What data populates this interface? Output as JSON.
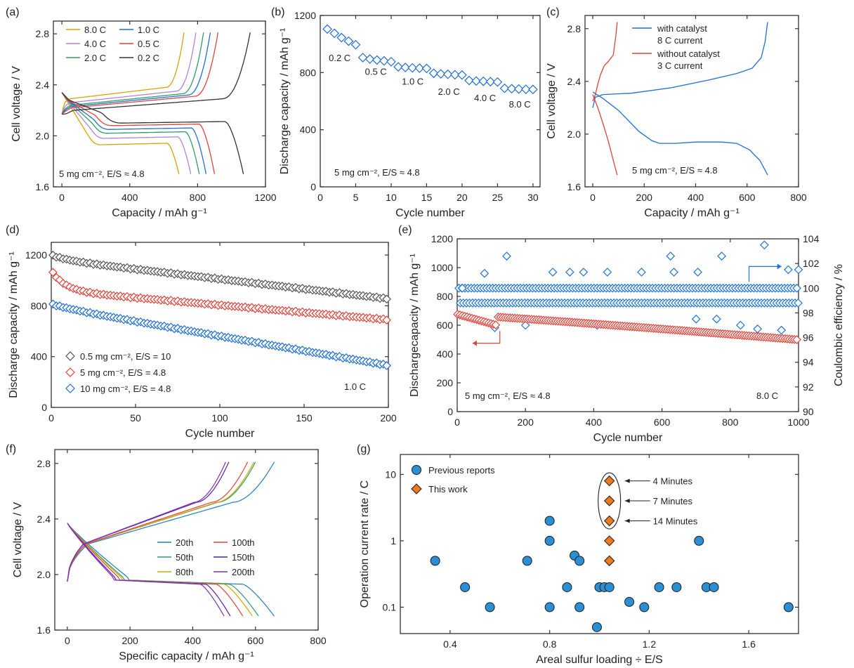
{
  "colors": {
    "yellow": "#d9a400",
    "blue": "#1f6fd1",
    "purple": "#b083d9",
    "red": "#e0433a",
    "green": "#2f9e63",
    "black": "#333333",
    "gray": "#555555",
    "ce_blue": "#1f74d4",
    "marker_blue": "#2b8fd6",
    "marker_orange": "#ee7a1e",
    "purple_dark": "#5a1f9e",
    "teal": "#1b7ec2"
  },
  "chart_data": [
    {
      "id": "a",
      "panel_label": "(a)",
      "type": "line",
      "xlabel": "Capacity / mAh g⁻¹",
      "ylabel": "Cell voltage / V",
      "xlim": [
        -50,
        1200
      ],
      "ylim": [
        1.6,
        2.9
      ],
      "xticks": [
        0,
        400,
        800,
        1200
      ],
      "yticks": [
        1.6,
        2.0,
        2.4,
        2.8
      ],
      "ytick_labels": [
        "1.6",
        "2.0",
        "2.4",
        "2.8"
      ],
      "annotation": "5 mg cm⁻², E/S ≈ 4.8",
      "legend": [
        "8.0 C",
        "1.0 C",
        "4.0 C",
        "0.5 C",
        "2.0 C",
        "0.2 C"
      ],
      "series": [
        {
          "name": "8.0 C",
          "discharge_capacity": 690,
          "charge_capacity": 720,
          "plateau_low": 1.93,
          "plateau_charge": 2.31
        },
        {
          "name": "4.0 C",
          "discharge_capacity": 760,
          "charge_capacity": 790,
          "plateau_low": 1.98,
          "plateau_charge": 2.28
        },
        {
          "name": "2.0 C",
          "discharge_capacity": 810,
          "charge_capacity": 835,
          "plateau_low": 2.02,
          "plateau_charge": 2.26
        },
        {
          "name": "1.0 C",
          "discharge_capacity": 850,
          "charge_capacity": 875,
          "plateau_low": 2.05,
          "plateau_charge": 2.25
        },
        {
          "name": "0.5 C",
          "discharge_capacity": 900,
          "charge_capacity": 920,
          "plateau_low": 2.08,
          "plateau_charge": 2.24
        },
        {
          "name": "0.2 C",
          "discharge_capacity": 1070,
          "charge_capacity": 1110,
          "plateau_low": 2.1,
          "plateau_charge": 2.22
        }
      ]
    },
    {
      "id": "b",
      "panel_label": "(b)",
      "type": "scatter",
      "xlabel": "Cycle number",
      "ylabel": "Discharge capacity / mAh g⁻¹",
      "xlim": [
        0,
        31
      ],
      "ylim": [
        0,
        1200
      ],
      "xticks": [
        0,
        5,
        10,
        15,
        20,
        25,
        30
      ],
      "yticks": [
        0,
        400,
        800,
        1200
      ],
      "annotation": "5 mg cm⁻², E/S ≈ 4.8",
      "x": [
        1,
        2,
        3,
        4,
        5,
        6,
        7,
        8,
        9,
        10,
        11,
        12,
        13,
        14,
        15,
        16,
        17,
        18,
        19,
        20,
        21,
        22,
        23,
        24,
        25,
        26,
        27,
        28,
        29,
        30
      ],
      "y": [
        1105,
        1075,
        1045,
        1020,
        995,
        905,
        895,
        888,
        882,
        876,
        840,
        836,
        833,
        831,
        829,
        795,
        791,
        788,
        785,
        783,
        745,
        741,
        739,
        736,
        734,
        690,
        687,
        685,
        683,
        682
      ],
      "rate_labels": [
        {
          "text": "0.2 C",
          "x": 1.2,
          "y": 880
        },
        {
          "text": "0.5 C",
          "x": 6.3,
          "y": 785
        },
        {
          "text": "1.0 C",
          "x": 11.5,
          "y": 715
        },
        {
          "text": "2.0 C",
          "x": 16.6,
          "y": 645
        },
        {
          "text": "4.0 C",
          "x": 21.7,
          "y": 600
        },
        {
          "text": "8.0 C",
          "x": 26.6,
          "y": 555
        }
      ]
    },
    {
      "id": "c",
      "panel_label": "(c)",
      "type": "line",
      "xlabel": "Capacity / mAh g⁻¹",
      "ylabel": "Cell voltage / V",
      "xlim": [
        -30,
        800
      ],
      "ylim": [
        1.6,
        2.9
      ],
      "xticks": [
        0,
        200,
        400,
        600,
        800
      ],
      "yticks": [
        1.6,
        2.0,
        2.4,
        2.8
      ],
      "ytick_labels": [
        "1.6",
        "2.0",
        "2.4",
        "2.8"
      ],
      "annotation": "5 mg cm⁻², E/S ≈ 4.8",
      "legend": [
        {
          "line1": "with catalyst",
          "line2": "8 C current"
        },
        {
          "line1": "without catalyst",
          "line2": "3 C current"
        }
      ],
      "series": [
        {
          "name": "with catalyst",
          "discharge": [
            [
              0,
              2.32
            ],
            [
              40,
              2.27
            ],
            [
              100,
              2.18
            ],
            [
              180,
              2.02
            ],
            [
              230,
              1.95
            ],
            [
              260,
              1.93
            ],
            [
              320,
              1.93
            ],
            [
              400,
              1.94
            ],
            [
              500,
              1.94
            ],
            [
              560,
              1.93
            ],
            [
              610,
              1.88
            ],
            [
              650,
              1.8
            ],
            [
              680,
              1.69
            ]
          ],
          "charge": [
            [
              0,
              2.2
            ],
            [
              10,
              2.28
            ],
            [
              40,
              2.3
            ],
            [
              150,
              2.31
            ],
            [
              300,
              2.35
            ],
            [
              450,
              2.41
            ],
            [
              560,
              2.46
            ],
            [
              620,
              2.5
            ],
            [
              655,
              2.58
            ],
            [
              670,
              2.7
            ],
            [
              680,
              2.85
            ]
          ]
        },
        {
          "name": "without catalyst",
          "discharge": [
            [
              0,
              2.3
            ],
            [
              20,
              2.2
            ],
            [
              40,
              2.08
            ],
            [
              60,
              1.95
            ],
            [
              80,
              1.8
            ],
            [
              95,
              1.69
            ]
          ],
          "charge": [
            [
              0,
              2.25
            ],
            [
              10,
              2.3
            ],
            [
              20,
              2.38
            ],
            [
              30,
              2.45
            ],
            [
              45,
              2.52
            ],
            [
              60,
              2.55
            ],
            [
              80,
              2.6
            ],
            [
              90,
              2.75
            ],
            [
              95,
              2.85
            ]
          ]
        }
      ]
    },
    {
      "id": "d",
      "panel_label": "(d)",
      "type": "scatter",
      "xlabel": "Cycle number",
      "ylabel": "Discharge capacity / mAh g⁻¹",
      "xlim": [
        0,
        200
      ],
      "ylim": [
        0,
        1300
      ],
      "xticks": [
        0,
        50,
        100,
        150,
        200
      ],
      "yticks": [
        0,
        400,
        800,
        1200
      ],
      "annotation": "1.0 C",
      "series": [
        {
          "name": "0.5 mg cm⁻², E/S = 10",
          "start": 1195,
          "end": 855,
          "fast_drop": 30,
          "fast_tau": 10
        },
        {
          "name": "5 mg cm⁻², E/S = 4.8",
          "start": 1060,
          "end": 690,
          "fast_drop": 140,
          "fast_tau": 8
        },
        {
          "name": "10 mg cm⁻², E/S = 4.8",
          "start": 810,
          "end": 330,
          "fast_drop": 20,
          "fast_tau": 15
        }
      ]
    },
    {
      "id": "e",
      "panel_label": "(e)",
      "type": "scatter",
      "xlabel": "Cycle number",
      "ylabel": "Dischargecapacity / mAh g⁻¹",
      "y2label": "Coulombic efficiency / %",
      "xlim": [
        0,
        1000
      ],
      "ylim": [
        0,
        1200
      ],
      "y2lim": [
        90,
        104
      ],
      "xticks": [
        0,
        200,
        400,
        600,
        800,
        1000
      ],
      "yticks": [
        0,
        200,
        400,
        600,
        800,
        1000,
        1200
      ],
      "y2ticks": [
        90,
        92,
        94,
        96,
        98,
        100,
        102,
        104
      ],
      "annotation": "5 mg cm⁻², E/S ≈ 4.8",
      "rate": "8.0 C",
      "capacity_start": 670,
      "capacity_end": 500,
      "ce_main_levels": [
        100,
        98.8
      ],
      "ce_outliers": [
        [
          15,
          100
        ],
        [
          80,
          101.2
        ],
        [
          110,
          96.8
        ],
        [
          145,
          102.6
        ],
        [
          200,
          97
        ],
        [
          280,
          101.3
        ],
        [
          330,
          101.3
        ],
        [
          370,
          101.3
        ],
        [
          410,
          97
        ],
        [
          440,
          101.3
        ],
        [
          540,
          101.3
        ],
        [
          625,
          102.6
        ],
        [
          635,
          101.3
        ],
        [
          700,
          97.5
        ],
        [
          705,
          101.3
        ],
        [
          760,
          97.5
        ],
        [
          775,
          102.6
        ],
        [
          830,
          97
        ],
        [
          880,
          96.7
        ],
        [
          900,
          103.5
        ],
        [
          950,
          96.6
        ],
        [
          970,
          101.5
        ],
        [
          1000,
          101.5
        ]
      ],
      "capacity_arrow_text": "",
      "ce_arrow_text": ""
    },
    {
      "id": "f",
      "panel_label": "(f)",
      "type": "line",
      "xlabel": "Specific capacity / mAh g⁻¹",
      "ylabel": "Cell voltage / V",
      "xlim": [
        -40,
        800
      ],
      "ylim": [
        1.6,
        2.9
      ],
      "xticks": [
        0,
        200,
        400,
        600,
        800
      ],
      "yticks": [
        1.6,
        2.0,
        2.4,
        2.8
      ],
      "ytick_labels": [
        "1.6",
        "2.0",
        "2.4",
        "2.8"
      ],
      "legend": [
        "20th",
        "100th",
        "50th",
        "150th",
        "80th",
        "200th"
      ],
      "series": [
        {
          "name": "20th",
          "discharge_capacity": 660,
          "charge_capacity": 660
        },
        {
          "name": "50th",
          "discharge_capacity": 610,
          "charge_capacity": 600
        },
        {
          "name": "80th",
          "discharge_capacity": 590,
          "charge_capacity": 595
        },
        {
          "name": "100th",
          "discharge_capacity": 560,
          "charge_capacity": 575
        },
        {
          "name": "150th",
          "discharge_capacity": 520,
          "charge_capacity": 515
        },
        {
          "name": "200th",
          "discharge_capacity": 500,
          "charge_capacity": 505
        }
      ]
    },
    {
      "id": "g",
      "panel_label": "(g)",
      "type": "scatter",
      "xlabel": "Areal sulfur loading ÷ E/S",
      "ylabel": "Operation current rate / C",
      "xlim": [
        0.2,
        1.8
      ],
      "ylim": [
        0.04,
        20
      ],
      "yscale": "log",
      "xticks": [
        0.4,
        0.8,
        1.2,
        1.6
      ],
      "yticks": [
        0.1,
        1,
        10
      ],
      "ytick_labels": [
        "0.1",
        "1",
        "10"
      ],
      "legend": [
        "Previous reports",
        "This work"
      ],
      "previous": [
        [
          0.34,
          0.5
        ],
        [
          0.46,
          0.2
        ],
        [
          0.56,
          0.1
        ],
        [
          0.71,
          0.5
        ],
        [
          0.8,
          2
        ],
        [
          0.8,
          1
        ],
        [
          0.8,
          0.1
        ],
        [
          0.87,
          0.2
        ],
        [
          0.9,
          0.6
        ],
        [
          0.92,
          0.5
        ],
        [
          0.92,
          0.1
        ],
        [
          0.99,
          0.05
        ],
        [
          1.0,
          0.2
        ],
        [
          1.02,
          0.2
        ],
        [
          1.04,
          0.2
        ],
        [
          1.12,
          0.12
        ],
        [
          1.18,
          0.1
        ],
        [
          1.24,
          0.2
        ],
        [
          1.31,
          0.2
        ],
        [
          1.4,
          1
        ],
        [
          1.43,
          0.2
        ],
        [
          1.46,
          0.2
        ],
        [
          1.76,
          0.1
        ]
      ],
      "this_work": [
        [
          1.04,
          8
        ],
        [
          1.04,
          4
        ],
        [
          1.04,
          2
        ],
        [
          1.04,
          1
        ],
        [
          1.04,
          0.5
        ]
      ],
      "annotations": [
        "4 Minutes",
        "7 Minutes",
        "14 Minutes"
      ]
    }
  ]
}
